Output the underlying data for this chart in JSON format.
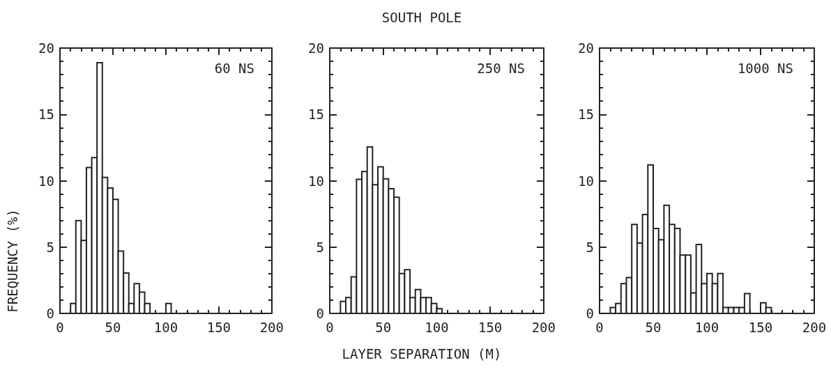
{
  "chart_data": [
    {
      "type": "histogram",
      "ylabel": "FREQUENCY (%)",
      "annotations": [
        "60 NS"
      ],
      "color": "#222222",
      "bins": [
        0,
        5,
        10,
        15,
        20,
        25,
        30,
        35,
        40,
        45,
        50,
        55,
        60,
        65,
        70,
        75,
        80,
        85,
        90,
        95,
        100,
        105,
        110,
        115,
        120,
        125,
        130,
        135,
        140,
        145,
        150,
        155,
        160,
        165,
        170,
        175,
        180,
        185,
        190,
        195,
        200
      ],
      "values": [
        0,
        0,
        0.75,
        7,
        5.5,
        11,
        11.75,
        18.9,
        10.25,
        9.45,
        8.6,
        4.7,
        3.05,
        0.75,
        2.25,
        1.6,
        0.75,
        0,
        0,
        0,
        0.75,
        0,
        0,
        0,
        0,
        0,
        0,
        0,
        0,
        0,
        0,
        0,
        0,
        0,
        0,
        0,
        0,
        0,
        0,
        0
      ],
      "xlim": [
        0,
        200
      ],
      "xticks": [
        0,
        50,
        100,
        150,
        200
      ],
      "ylim": [
        0,
        20
      ],
      "yticks": [
        0,
        5,
        10,
        15,
        20
      ],
      "grid": false
    },
    {
      "type": "histogram",
      "title": "SOUTH POLE",
      "xlabel": "LAYER SEPARATION (M)",
      "annotations": [
        "250 NS"
      ],
      "color": "#222222",
      "bins": [
        0,
        5,
        10,
        15,
        20,
        25,
        30,
        35,
        40,
        45,
        50,
        55,
        60,
        65,
        70,
        75,
        80,
        85,
        90,
        95,
        100,
        105,
        110,
        115,
        120,
        125,
        130,
        135,
        140,
        145,
        150,
        155,
        160,
        165,
        170,
        175,
        180,
        185,
        190,
        195,
        200
      ],
      "values": [
        0,
        0,
        0.9,
        1.2,
        2.75,
        10.1,
        10.7,
        12.55,
        9.7,
        11.05,
        10.15,
        9.4,
        8.75,
        3.0,
        3.3,
        1.2,
        1.8,
        1.2,
        1.2,
        0.75,
        0.35,
        0,
        0,
        0,
        0,
        0,
        0,
        0,
        0,
        0,
        0,
        0,
        0,
        0,
        0,
        0,
        0,
        0,
        0,
        0
      ],
      "xlim": [
        0,
        200
      ],
      "xticks": [
        0,
        50,
        100,
        150,
        200
      ],
      "ylim": [
        0,
        20
      ],
      "yticks": [
        0,
        5,
        10,
        15,
        20
      ],
      "grid": false
    },
    {
      "type": "histogram",
      "annotations": [
        "1000 NS"
      ],
      "color": "#222222",
      "bins": [
        0,
        5,
        10,
        15,
        20,
        25,
        30,
        35,
        40,
        45,
        50,
        55,
        60,
        65,
        70,
        75,
        80,
        85,
        90,
        95,
        100,
        105,
        110,
        115,
        120,
        125,
        130,
        135,
        140,
        145,
        150,
        155,
        160,
        165,
        170,
        175,
        180,
        185,
        190,
        195,
        200
      ],
      "values": [
        0,
        0,
        0.45,
        0.75,
        2.25,
        2.7,
        6.7,
        5.3,
        7.45,
        11.2,
        6.4,
        5.55,
        8.15,
        6.7,
        6.4,
        4.4,
        4.4,
        1.55,
        5.2,
        2.25,
        3.0,
        2.25,
        3.0,
        0.45,
        0.45,
        0.45,
        0.45,
        1.5,
        0,
        0,
        0.8,
        0.45,
        0,
        0,
        0,
        0,
        0,
        0,
        0,
        0
      ],
      "xlim": [
        0,
        200
      ],
      "xticks": [
        0,
        50,
        100,
        150,
        200
      ],
      "ylim": [
        0,
        20
      ],
      "yticks": [
        0,
        5,
        10,
        15,
        20
      ],
      "grid": false
    }
  ]
}
